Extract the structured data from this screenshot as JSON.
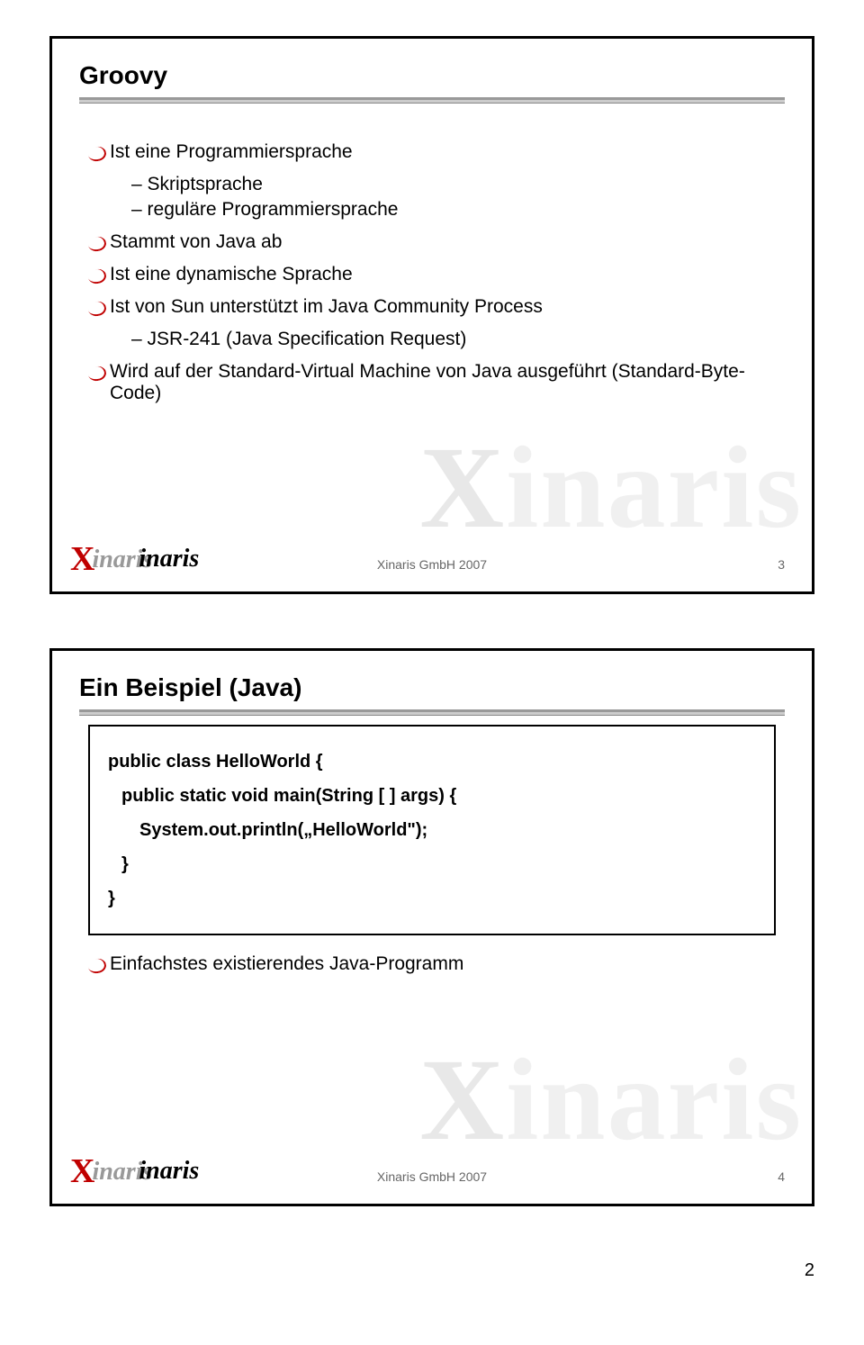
{
  "colors": {
    "accent_red": "#c00000",
    "watermark": "#f0f0f0",
    "footer_text": "#666666",
    "border": "#000000"
  },
  "slide1": {
    "title": "Groovy",
    "bullets": [
      {
        "type": "main",
        "text": "Ist eine Programmiersprache"
      },
      {
        "type": "sub",
        "text": "Skriptsprache"
      },
      {
        "type": "sub",
        "text": "reguläre Programmiersprache"
      },
      {
        "type": "main",
        "text": "Stammt von Java ab"
      },
      {
        "type": "main",
        "text": "Ist eine dynamische Sprache"
      },
      {
        "type": "main",
        "text": "Ist von Sun unterstützt im Java Community Process"
      },
      {
        "type": "sub",
        "text": "JSR-241 (Java Specification Request)"
      },
      {
        "type": "main",
        "text": "Wird auf der Standard-Virtual Machine von Java ausgeführt (Standard-Byte-Code)"
      }
    ],
    "footer_center": "Xinaris GmbH 2007",
    "footer_page": "3",
    "logo_text": "inaris",
    "watermark_text": "inaris"
  },
  "slide2": {
    "title": "Ein Beispiel (Java)",
    "code": {
      "line1": "public class HelloWorld  {",
      "line2": "public static void main(String [ ] args)  {",
      "line3": "System.out.println(„HelloWorld\");",
      "line4": "}",
      "line5": "}"
    },
    "bullets": [
      {
        "type": "main",
        "text": "Einfachstes existierendes Java-Programm"
      }
    ],
    "footer_center": "Xinaris GmbH 2007",
    "footer_page": "4",
    "logo_text": "inaris",
    "watermark_text": "inaris"
  },
  "page_number": "2"
}
